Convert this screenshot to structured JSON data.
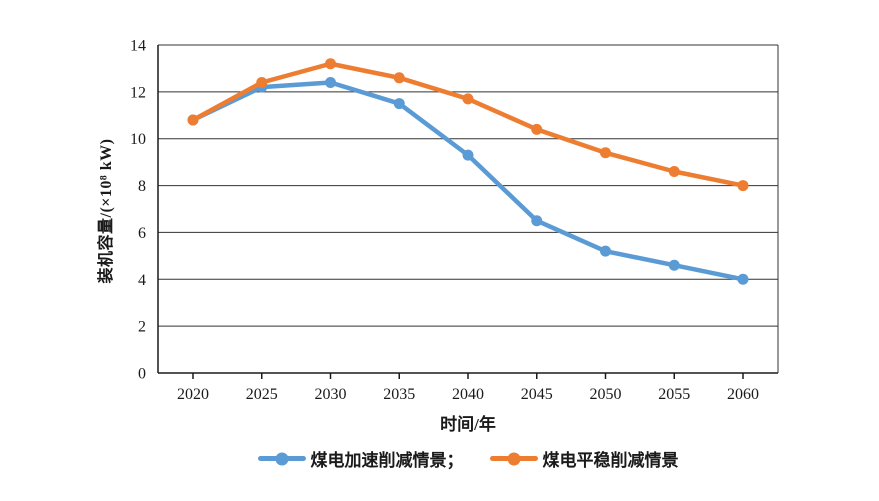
{
  "chart_data": {
    "type": "line",
    "x": [
      2020,
      2025,
      2030,
      2035,
      2040,
      2045,
      2050,
      2055,
      2060
    ],
    "series": [
      {
        "name": "煤电加速削减情景",
        "color": "#5B9BD5",
        "values": [
          10.8,
          12.2,
          12.4,
          11.5,
          9.3,
          6.5,
          5.2,
          4.6,
          4.0
        ]
      },
      {
        "name": "煤电平稳削减情景",
        "color": "#ED7D31",
        "values": [
          10.8,
          12.4,
          13.2,
          12.6,
          11.7,
          10.4,
          9.4,
          8.6,
          8.0
        ]
      }
    ],
    "title": "",
    "xlabel": "时间/年",
    "ylabel": "装机容量/(×10⁸ kW)",
    "ylim": [
      0,
      14
    ],
    "yticks": [
      0,
      2,
      4,
      6,
      8,
      10,
      12,
      14
    ],
    "grid": "horizontal",
    "legend_position": "bottom",
    "axis_color": "#1a1a1a",
    "grid_color": "#333333"
  },
  "legend": {
    "items": [
      {
        "label": "煤电加速削减情景；",
        "color": "#5B9BD5"
      },
      {
        "label": "煤电平稳削减情景",
        "color": "#ED7D31"
      }
    ]
  }
}
